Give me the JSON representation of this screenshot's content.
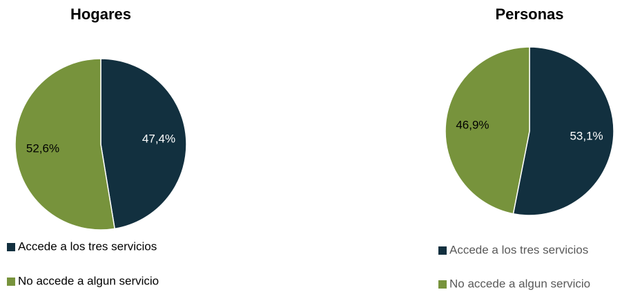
{
  "chart_data": [
    {
      "type": "pie",
      "title": "Hogares",
      "categories": [
        "Accede a los tres servicios",
        "No accede a algun servicio"
      ],
      "values": [
        47.4,
        52.6
      ],
      "value_labels": [
        "47,4%",
        "52,6%"
      ],
      "colors": [
        "#12303f",
        "#77933c"
      ]
    },
    {
      "type": "pie",
      "title": "Personas",
      "categories": [
        "Accede a los tres servicios",
        "No accede a algun servicio"
      ],
      "values": [
        53.1,
        46.9
      ],
      "value_labels": [
        "53,1%",
        "46,9%"
      ],
      "colors": [
        "#12303f",
        "#77933c"
      ]
    }
  ]
}
